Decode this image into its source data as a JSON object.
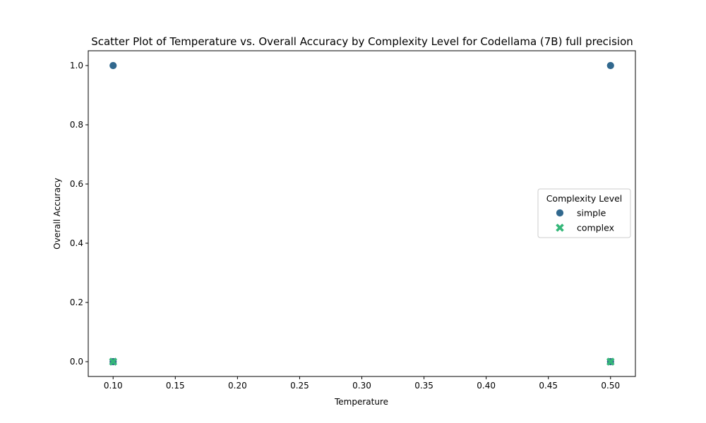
{
  "chart_data": {
    "type": "scatter",
    "title": "Scatter Plot of Temperature vs. Overall Accuracy by Complexity Level for Codellama (7B) full precision",
    "xlabel": "Temperature",
    "ylabel": "Overall Accuracy",
    "xlim": [
      0.08,
      0.52
    ],
    "ylim": [
      -0.05,
      1.05
    ],
    "xticks": [
      0.1,
      0.15,
      0.2,
      0.25,
      0.3,
      0.35,
      0.4,
      0.45,
      0.5
    ],
    "xtick_labels": [
      "0.10",
      "0.15",
      "0.20",
      "0.25",
      "0.30",
      "0.35",
      "0.40",
      "0.45",
      "0.50"
    ],
    "yticks": [
      0.0,
      0.2,
      0.4,
      0.6,
      0.8,
      1.0
    ],
    "ytick_labels": [
      "0.0",
      "0.2",
      "0.4",
      "0.6",
      "0.8",
      "1.0"
    ],
    "grid": false,
    "legend": {
      "title": "Complexity Level",
      "placement": "center-right"
    },
    "series": [
      {
        "name": "simple",
        "marker": "circle",
        "color": "#31688e",
        "points": [
          {
            "x": 0.1,
            "y": 1.0
          },
          {
            "x": 0.5,
            "y": 1.0
          },
          {
            "x": 0.1,
            "y": 0.0
          },
          {
            "x": 0.5,
            "y": 0.0
          }
        ]
      },
      {
        "name": "complex",
        "marker": "x",
        "color": "#35b779",
        "points": [
          {
            "x": 0.1,
            "y": 0.0
          },
          {
            "x": 0.5,
            "y": 0.0
          }
        ]
      }
    ]
  }
}
